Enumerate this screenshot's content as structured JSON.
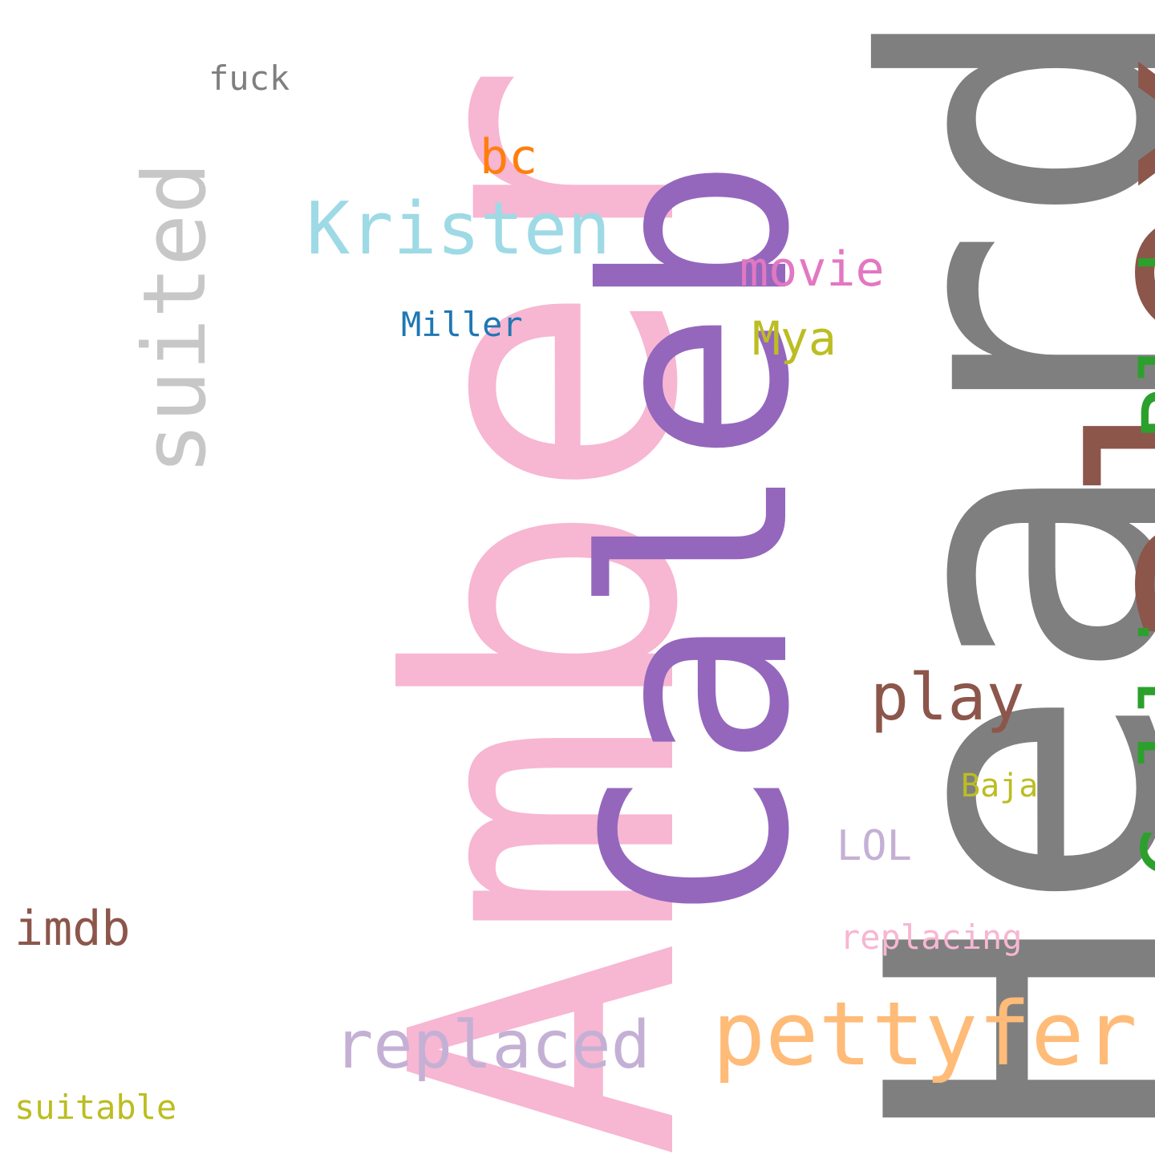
{
  "words": {
    "heard": {
      "text": "Heard",
      "color": "#7f7f7f",
      "vertical": true
    },
    "amber": {
      "text": "Amber",
      "color": "#f7b6d2",
      "vertical": true
    },
    "caleb": {
      "text": "Caleb",
      "color": "#9467bd",
      "vertical": true
    },
    "alex": {
      "text": "alex",
      "color": "#8c564b",
      "vertical": true
    },
    "calliopeblabs": {
      "text": "CalliopeBlabs",
      "color": "#2ca02c",
      "vertical": true
    },
    "suited": {
      "text": "suited",
      "color": "#c7c7c7",
      "vertical": true
    },
    "pettyfer": {
      "text": "pettyfer",
      "color": "#ffbb78",
      "vertical": false
    },
    "kristen": {
      "text": "Kristen",
      "color": "#9edae5",
      "vertical": false
    },
    "replaced": {
      "text": "replaced",
      "color": "#c5b0d5",
      "vertical": false
    },
    "play": {
      "text": "play",
      "color": "#8c564b",
      "vertical": false
    },
    "imdb": {
      "text": "imdb",
      "color": "#8c564b",
      "vertical": false
    },
    "movie": {
      "text": "movie",
      "color": "#e377c2",
      "vertical": false
    },
    "bc": {
      "text": "bc",
      "color": "#ff7f0e",
      "vertical": false
    },
    "mya": {
      "text": "Mya",
      "color": "#bcbd22",
      "vertical": false
    },
    "lol": {
      "text": "LOL",
      "color": "#c5b0d5",
      "vertical": false
    },
    "replacing": {
      "text": "replacing",
      "color": "#f7b6d2",
      "vertical": false
    },
    "fuck": {
      "text": "fuck",
      "color": "#7f7f7f",
      "vertical": false
    },
    "miller": {
      "text": "Miller",
      "color": "#1f77b4",
      "vertical": false
    },
    "suitable": {
      "text": "suitable",
      "color": "#bcbd22",
      "vertical": false
    },
    "baja": {
      "text": "Baja",
      "color": "#bcbd22",
      "vertical": false
    }
  }
}
